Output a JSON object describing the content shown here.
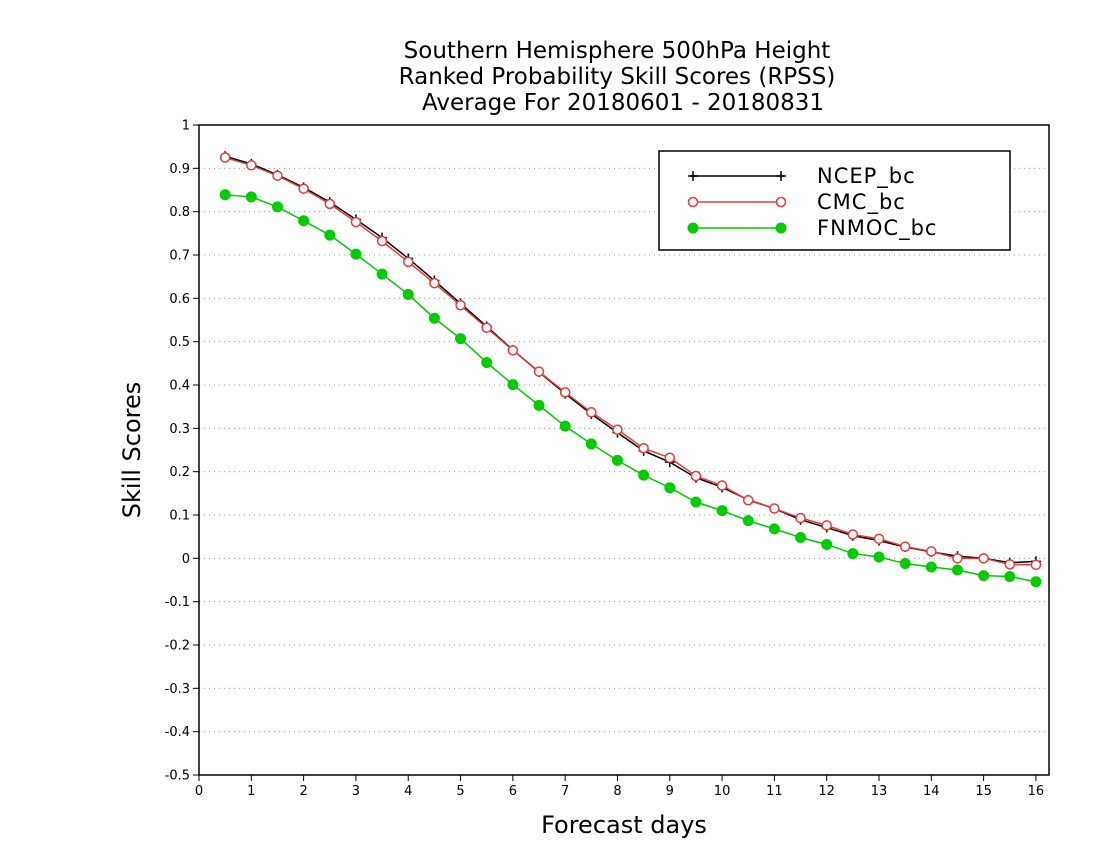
{
  "chart_data": {
    "type": "line",
    "title": [
      "Southern Hemisphere 500hPa Height",
      "Ranked Probability Skill Scores (RPSS)",
      "Average For 20180601 - 20180831"
    ],
    "xlabel": "Forecast days",
    "ylabel": "Skill Scores",
    "xlim": [
      0,
      16.25
    ],
    "ylim": [
      -0.5,
      1
    ],
    "xticks": [
      "0",
      "1",
      "2",
      "3",
      "4",
      "5",
      "6",
      "7",
      "8",
      "9",
      "10",
      "11",
      "12",
      "13",
      "14",
      "15",
      "16"
    ],
    "yticks": [
      "1",
      "0.9",
      "0.8",
      "0.7",
      "0.6",
      "0.5",
      "0.4",
      "0.3",
      "0.2",
      "0.1",
      "0",
      "-0.1",
      "-0.2",
      "-0.3",
      "-0.4",
      "-0.5"
    ],
    "grid": true,
    "legend_position": "top-right",
    "x": [
      0.5,
      1,
      1.5,
      2,
      2.5,
      3,
      3.5,
      4,
      4.5,
      5,
      5.5,
      6,
      6.5,
      7,
      7.5,
      8,
      8.5,
      9,
      9.5,
      10,
      10.5,
      11,
      11.5,
      12,
      12.5,
      13,
      13.5,
      14,
      14.5,
      15,
      15.5,
      16
    ],
    "series": [
      {
        "name": "NCEP_bc",
        "color": "#000000",
        "marker": "plus",
        "values": [
          0.928,
          0.91,
          0.885,
          0.856,
          0.822,
          0.782,
          0.74,
          0.692,
          0.641,
          0.588,
          0.535,
          0.481,
          0.43,
          0.38,
          0.333,
          0.29,
          0.248,
          0.222,
          0.186,
          0.164,
          0.135,
          0.115,
          0.089,
          0.071,
          0.052,
          0.041,
          0.026,
          0.015,
          0.005,
          0.0,
          -0.01,
          -0.007
        ]
      },
      {
        "name": "CMC_bc",
        "color": "#e83a3a",
        "marker": "open-circle",
        "values": [
          0.925,
          0.907,
          0.883,
          0.853,
          0.818,
          0.776,
          0.732,
          0.684,
          0.635,
          0.584,
          0.532,
          0.48,
          0.431,
          0.383,
          0.337,
          0.297,
          0.254,
          0.232,
          0.19,
          0.168,
          0.134,
          0.115,
          0.093,
          0.076,
          0.055,
          0.045,
          0.027,
          0.016,
          0.0,
          0.0,
          -0.014,
          -0.015
        ]
      },
      {
        "name": "FNMOC_bc",
        "color": "#00cc00",
        "marker": "filled-circle",
        "values": [
          0.839,
          0.834,
          0.811,
          0.779,
          0.746,
          0.702,
          0.656,
          0.609,
          0.554,
          0.507,
          0.452,
          0.401,
          0.353,
          0.305,
          0.264,
          0.226,
          0.192,
          0.163,
          0.13,
          0.11,
          0.087,
          0.068,
          0.048,
          0.032,
          0.011,
          0.003,
          -0.012,
          -0.02,
          -0.027,
          -0.04,
          -0.042,
          -0.054
        ]
      }
    ]
  }
}
